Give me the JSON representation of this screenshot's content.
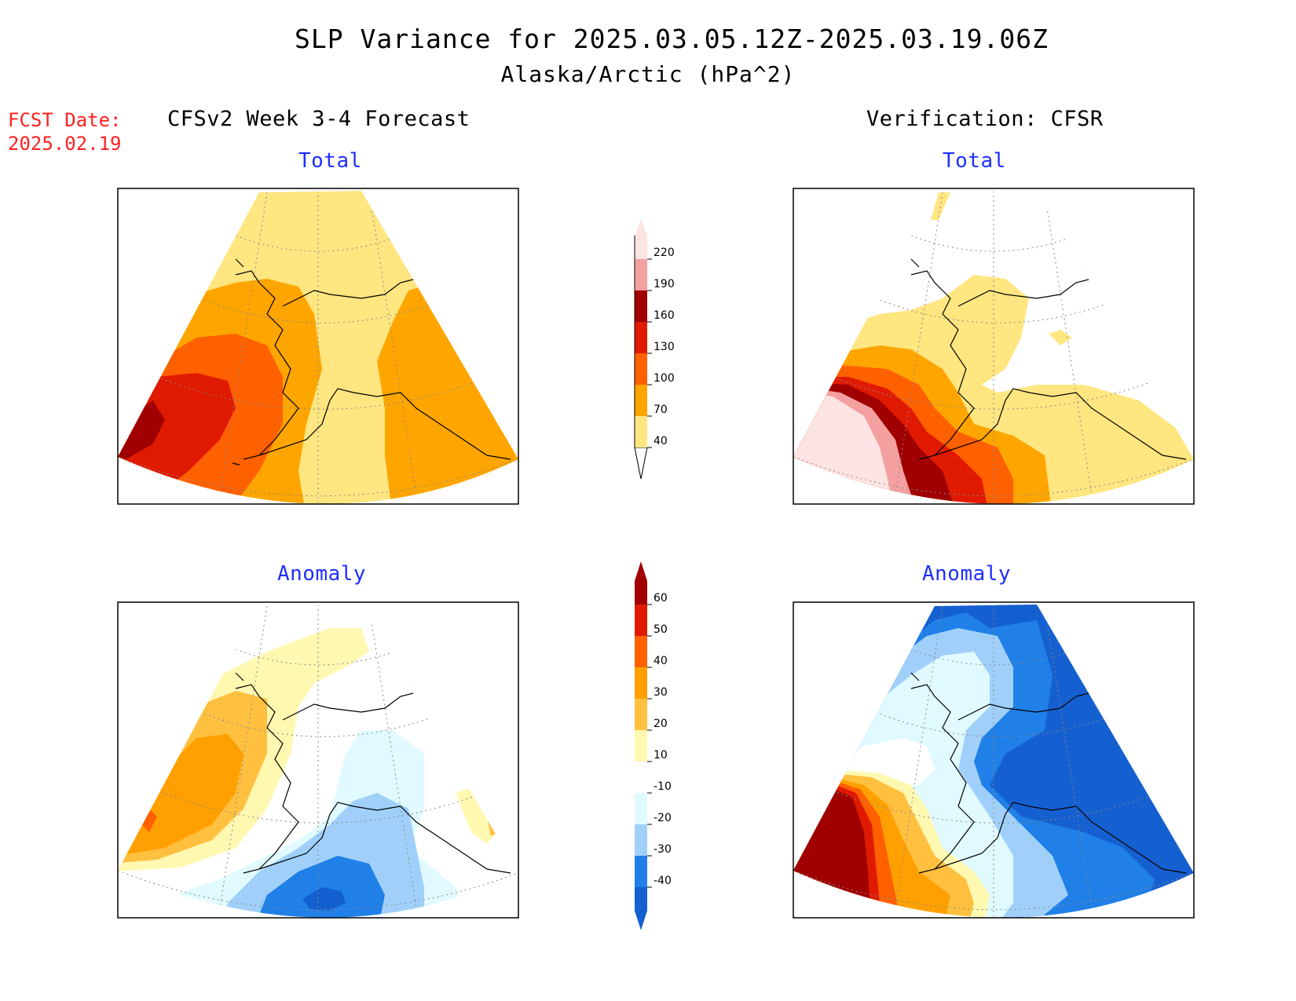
{
  "title": {
    "line1": "SLP Variance for 2025.03.05.12Z-2025.03.19.06Z",
    "line2": "Alaska/Arctic (hPa^2)"
  },
  "fcst_date": {
    "label": "FCST Date:",
    "value": "2025.02.19"
  },
  "columns": {
    "forecast_header": "CFSv2 Week 3-4 Forecast",
    "verification_header": "Verification: CFSR"
  },
  "panels": {
    "top_left_label": "Total",
    "top_right_label": "Total",
    "bottom_left_label": "Anomaly",
    "bottom_right_label": "Anomaly"
  },
  "total_scale": {
    "levels": [
      "40",
      "70",
      "100",
      "130",
      "160",
      "190",
      "220"
    ],
    "colors": [
      "#ffe680",
      "#ffa500",
      "#ff6000",
      "#e01a00",
      "#a00000",
      "#f4a0a0",
      "#fde4e4"
    ]
  },
  "anomaly_scale": {
    "levels": [
      "-40",
      "-30",
      "-20",
      "-10",
      "10",
      "20",
      "30",
      "40",
      "50",
      "60"
    ],
    "colors": [
      "#1560d0",
      "#2080e8",
      "#a0d0fa",
      "#e0faff",
      "#ffffff",
      "#fff8b0",
      "#ffc040",
      "#ffa000",
      "#ff6000",
      "#e01a00",
      "#a00000"
    ]
  }
}
